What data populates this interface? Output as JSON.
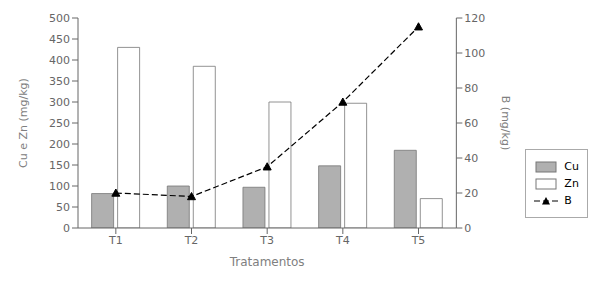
{
  "chart_data": {
    "type": "bar",
    "xlabel": "Tratamentos",
    "ylabel": "Cu e Zn (mg/kg)",
    "y2label": "B (mg/kg)",
    "categories": [
      "T1",
      "T2",
      "T3",
      "T4",
      "T5"
    ],
    "series": [
      {
        "name": "Cu",
        "type": "bar",
        "color": "#b0b0b0",
        "values": [
          82,
          100,
          97,
          148,
          185
        ]
      },
      {
        "name": "Zn",
        "type": "bar",
        "color": "#ffffff",
        "values": [
          430,
          385,
          300,
          297,
          70
        ]
      },
      {
        "name": "B",
        "type": "line",
        "axis": "y2",
        "color": "#000000",
        "marker": "triangle",
        "line_style": "dashed",
        "values": [
          20,
          18,
          35,
          72,
          115
        ]
      }
    ],
    "ylim": [
      0,
      500
    ],
    "yticks": [
      0,
      50,
      100,
      150,
      200,
      250,
      300,
      350,
      400,
      450,
      500
    ],
    "y2lim": [
      0,
      120
    ],
    "y2ticks": [
      0,
      20,
      40,
      60,
      80,
      100,
      120
    ],
    "legend": "right",
    "grid": false
  }
}
